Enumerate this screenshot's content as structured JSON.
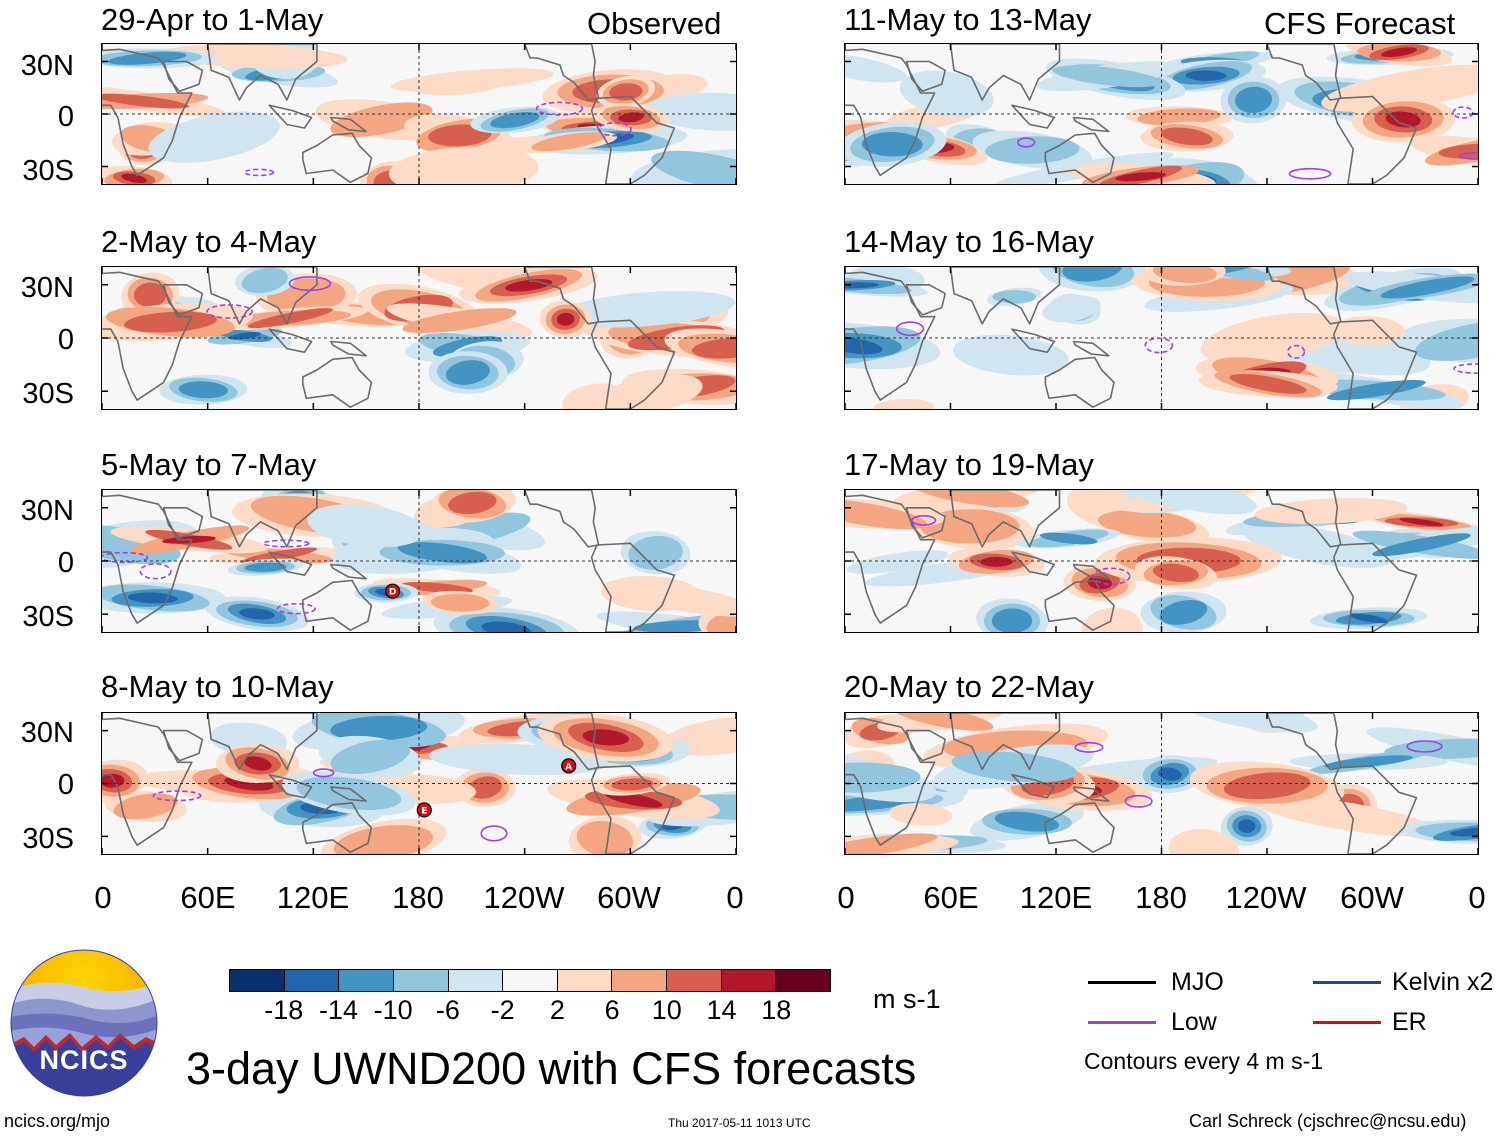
{
  "header": {
    "observed_label": "Observed",
    "forecast_label": "CFS Forecast"
  },
  "panels": [
    {
      "title": "29-Apr to 1-May",
      "seed": 11
    },
    {
      "title": "2-May to 4-May",
      "seed": 23
    },
    {
      "title": "5-May to 7-May",
      "seed": 37
    },
    {
      "title": "8-May to 10-May",
      "seed": 41
    },
    {
      "title": "11-May to 13-May",
      "seed": 53
    },
    {
      "title": "14-May to 16-May",
      "seed": 67
    },
    {
      "title": "17-May to 19-May",
      "seed": 79
    },
    {
      "title": "20-May to 22-May",
      "seed": 83
    }
  ],
  "storm_markers": [
    {
      "panel": 2,
      "letter": "D",
      "lon_deg": 165,
      "lat_deg": -17
    },
    {
      "panel": 3,
      "letter": "E",
      "lon_deg": 183,
      "lat_deg": -15
    },
    {
      "panel": 3,
      "letter": "A",
      "lon_deg": 265,
      "lat_deg": 10
    }
  ],
  "axes": {
    "lat_labels": [
      "30N",
      "0",
      "30S"
    ],
    "lon_labels": [
      "0",
      "60E",
      "120E",
      "180",
      "120W",
      "60W",
      "0"
    ]
  },
  "colorbar": {
    "colors": [
      "#08306b",
      "#2166ac",
      "#4393c3",
      "#92c5de",
      "#d1e5f0",
      "#f7f7f7",
      "#fddbc7",
      "#f4a582",
      "#d6604d",
      "#b2182b",
      "#67001f"
    ],
    "labels": [
      "-18",
      "-14",
      "-10",
      "-6",
      "-2",
      "2",
      "6",
      "10",
      "14",
      "18"
    ],
    "units": "m s-1"
  },
  "legend": {
    "items": [
      {
        "label": "MJO",
        "color": "#000000"
      },
      {
        "label": "Kelvin x2",
        "color": "#1f3fb0"
      },
      {
        "label": "Low",
        "color": "#a040e0"
      },
      {
        "label": "ER",
        "color": "#d01010"
      }
    ],
    "note": "Contours every 4 m s-1"
  },
  "main_title": "3-day UWND200 with CFS forecasts",
  "logo_text": "NCICS",
  "footer": {
    "url": "ncics.org/mjo",
    "timestamp": "Thu 2017-05-11 1013 UTC",
    "credit": "Carl Schreck (cjschrec@ncsu.edu)"
  }
}
